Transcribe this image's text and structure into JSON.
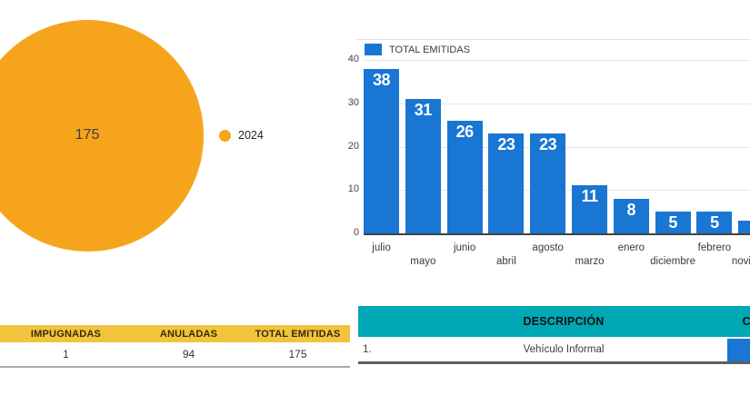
{
  "colors": {
    "bar": "#1976D2",
    "pie": "#F7A41D",
    "summary_header_bg": "#F2C43D",
    "description_header_bg": "#00A7B5",
    "grid_line": "#E6E6E6",
    "axis_line": "#424242"
  },
  "chart_data": [
    {
      "type": "pie",
      "labels": [
        "2024"
      ],
      "values": [
        175
      ],
      "colors": [
        "#F7A41D"
      ],
      "data_label": "175",
      "legend_position": "right"
    },
    {
      "type": "bar",
      "legend": [
        "TOTAL EMITIDAS"
      ],
      "categories": [
        "julio",
        "mayo",
        "junio",
        "abril",
        "agosto",
        "marzo",
        "enero",
        "diciembre",
        "febrero",
        "noviembre"
      ],
      "values": [
        38,
        31,
        26,
        23,
        23,
        11,
        8,
        5,
        5,
        3
      ],
      "bar_color": "#1976D2",
      "ylim": [
        0,
        40
      ],
      "y_ticks": [
        0,
        10,
        20,
        30,
        40
      ],
      "grid": true,
      "legend_position": "top-left",
      "xlabel": "",
      "ylabel": ""
    }
  ],
  "summary_table": {
    "headers": [
      "IMPUGNADAS",
      "ANULADAS",
      "TOTAL EMITIDAS"
    ],
    "values": [
      "1",
      "94",
      "175"
    ]
  },
  "description_table": {
    "headers": [
      "DESCRIPCIÓN",
      "CANTIDAD"
    ],
    "rows": [
      {
        "index": "1.",
        "description": "Vehículo Informal"
      }
    ]
  }
}
